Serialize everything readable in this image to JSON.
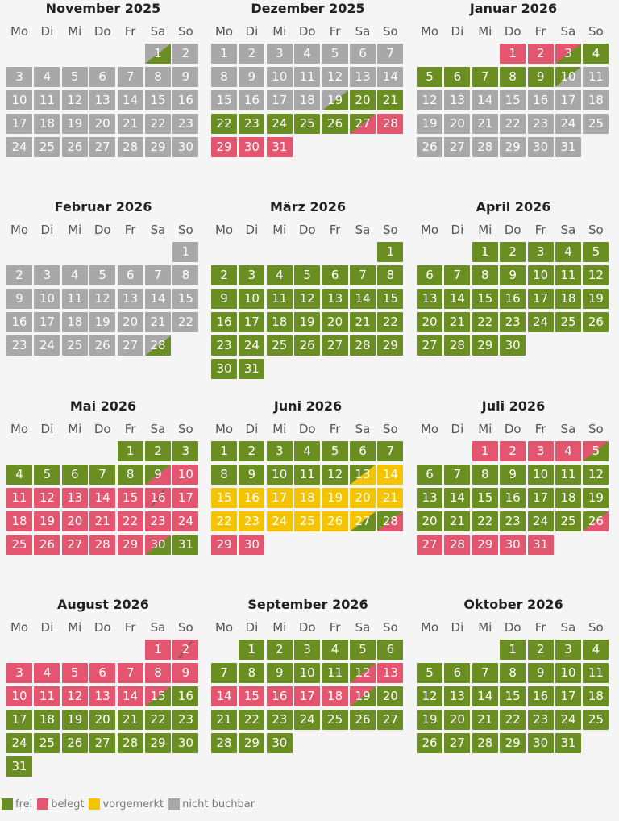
{
  "colors": {
    "frei": "#6b8e23",
    "belegt": "#e4566f",
    "vorgemerkt": "#f5c400",
    "nicht": "#a8a8a8"
  },
  "weekdays": [
    "Mo",
    "Di",
    "Mi",
    "Do",
    "Fr",
    "Sa",
    "So"
  ],
  "legend": [
    {
      "key": "frei",
      "label": "frei"
    },
    {
      "key": "belegt",
      "label": "belegt"
    },
    {
      "key": "vorgemerkt",
      "label": "vorgemerkt"
    },
    {
      "key": "nicht",
      "label": "nicht buchbar"
    }
  ],
  "months": [
    {
      "title": "November 2025",
      "days": 30,
      "startWeekday": 5,
      "status": {
        "base": "n",
        "ranges": [],
        "halves": {
          "1": "n>f"
        }
      }
    },
    {
      "title": "Dezember 2025",
      "days": 31,
      "startWeekday": 0,
      "status": {
        "base": "n",
        "ranges": [
          [
            "20",
            "26",
            "f"
          ],
          [
            "27",
            "31",
            "b"
          ]
        ],
        "halves": {
          "19": "n>f",
          "27": "f>b"
        }
      }
    },
    {
      "title": "Januar 2026",
      "days": 31,
      "startWeekday": 3,
      "status": {
        "base": "n",
        "ranges": [
          [
            "1",
            "2",
            "b"
          ],
          [
            "4",
            "9",
            "f"
          ]
        ],
        "halves": {
          "3": "b>f",
          "10": "f>n"
        }
      }
    },
    {
      "title": "Februar 2026",
      "days": 28,
      "startWeekday": 6,
      "status": {
        "base": "n",
        "ranges": [],
        "halves": {
          "28": "n>f"
        }
      }
    },
    {
      "title": "März 2026",
      "days": 31,
      "startWeekday": 6,
      "status": {
        "base": "f",
        "ranges": [],
        "halves": {}
      }
    },
    {
      "title": "April 2026",
      "days": 30,
      "startWeekday": 2,
      "status": {
        "base": "f",
        "ranges": [],
        "halves": {}
      }
    },
    {
      "title": "Mai 2026",
      "days": 31,
      "startWeekday": 4,
      "status": {
        "base": "b",
        "ranges": [
          [
            "1",
            "8",
            "f"
          ],
          [
            "31",
            "31",
            "f"
          ]
        ],
        "halves": {
          "9": "f>b",
          "16": "b>b",
          "30": "b>f"
        }
      }
    },
    {
      "title": "Juni 2026",
      "days": 30,
      "startWeekday": 0,
      "status": {
        "base": "f",
        "ranges": [
          [
            "14",
            "26",
            "v"
          ],
          [
            "29",
            "30",
            "b"
          ]
        ],
        "halves": {
          "13": "f>v",
          "27": "v>f",
          "28": "f>b"
        }
      }
    },
    {
      "title": "Juli 2026",
      "days": 31,
      "startWeekday": 2,
      "status": {
        "base": "f",
        "ranges": [
          [
            "1",
            "4",
            "b"
          ],
          [
            "27",
            "31",
            "b"
          ]
        ],
        "halves": {
          "5": "b>f",
          "26": "f>b"
        }
      }
    },
    {
      "title": "August 2026",
      "days": 31,
      "startWeekday": 5,
      "status": {
        "base": "f",
        "ranges": [
          [
            "1",
            "14",
            "b"
          ]
        ],
        "halves": {
          "2": "b>b",
          "15": "b>f"
        }
      }
    },
    {
      "title": "September 2026",
      "days": 30,
      "startWeekday": 1,
      "status": {
        "base": "f",
        "ranges": [
          [
            "13",
            "18",
            "b"
          ]
        ],
        "halves": {
          "12": "f>b",
          "19": "b>f"
        }
      }
    },
    {
      "title": "Oktober 2026",
      "days": 31,
      "startWeekday": 3,
      "status": {
        "base": "f",
        "ranges": [],
        "halves": {}
      }
    }
  ]
}
